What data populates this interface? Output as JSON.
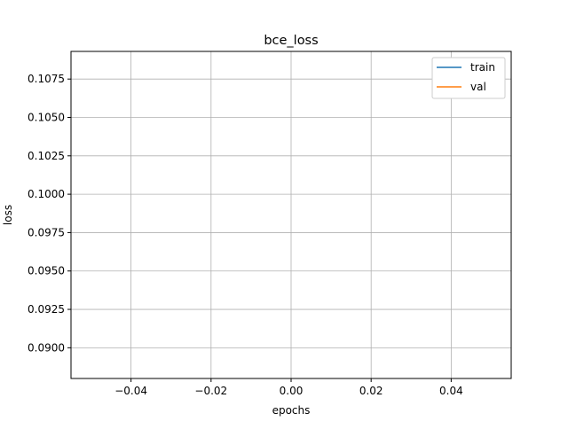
{
  "chart_data": {
    "type": "line",
    "title": "bce_loss",
    "xlabel": "epochs",
    "ylabel": "loss",
    "xlim": [
      -0.055,
      0.055
    ],
    "ylim": [
      0.088,
      0.1093
    ],
    "xticks": [
      -0.04,
      -0.02,
      0.0,
      0.02,
      0.04
    ],
    "xtick_labels": [
      "−0.04",
      "−0.02",
      "0.00",
      "0.02",
      "0.04"
    ],
    "yticks": [
      0.09,
      0.0925,
      0.095,
      0.0975,
      0.1,
      0.1025,
      0.105,
      0.1075
    ],
    "ytick_labels": [
      "0.0900",
      "0.0925",
      "0.0950",
      "0.0975",
      "0.1000",
      "0.1025",
      "0.1050",
      "0.1075"
    ],
    "grid": true,
    "legend_position": "top-right",
    "series": [
      {
        "name": "train",
        "x": [],
        "y": [],
        "color": "#1f77b4"
      },
      {
        "name": "val",
        "x": [],
        "y": [],
        "color": "#ff7f0e"
      }
    ]
  }
}
